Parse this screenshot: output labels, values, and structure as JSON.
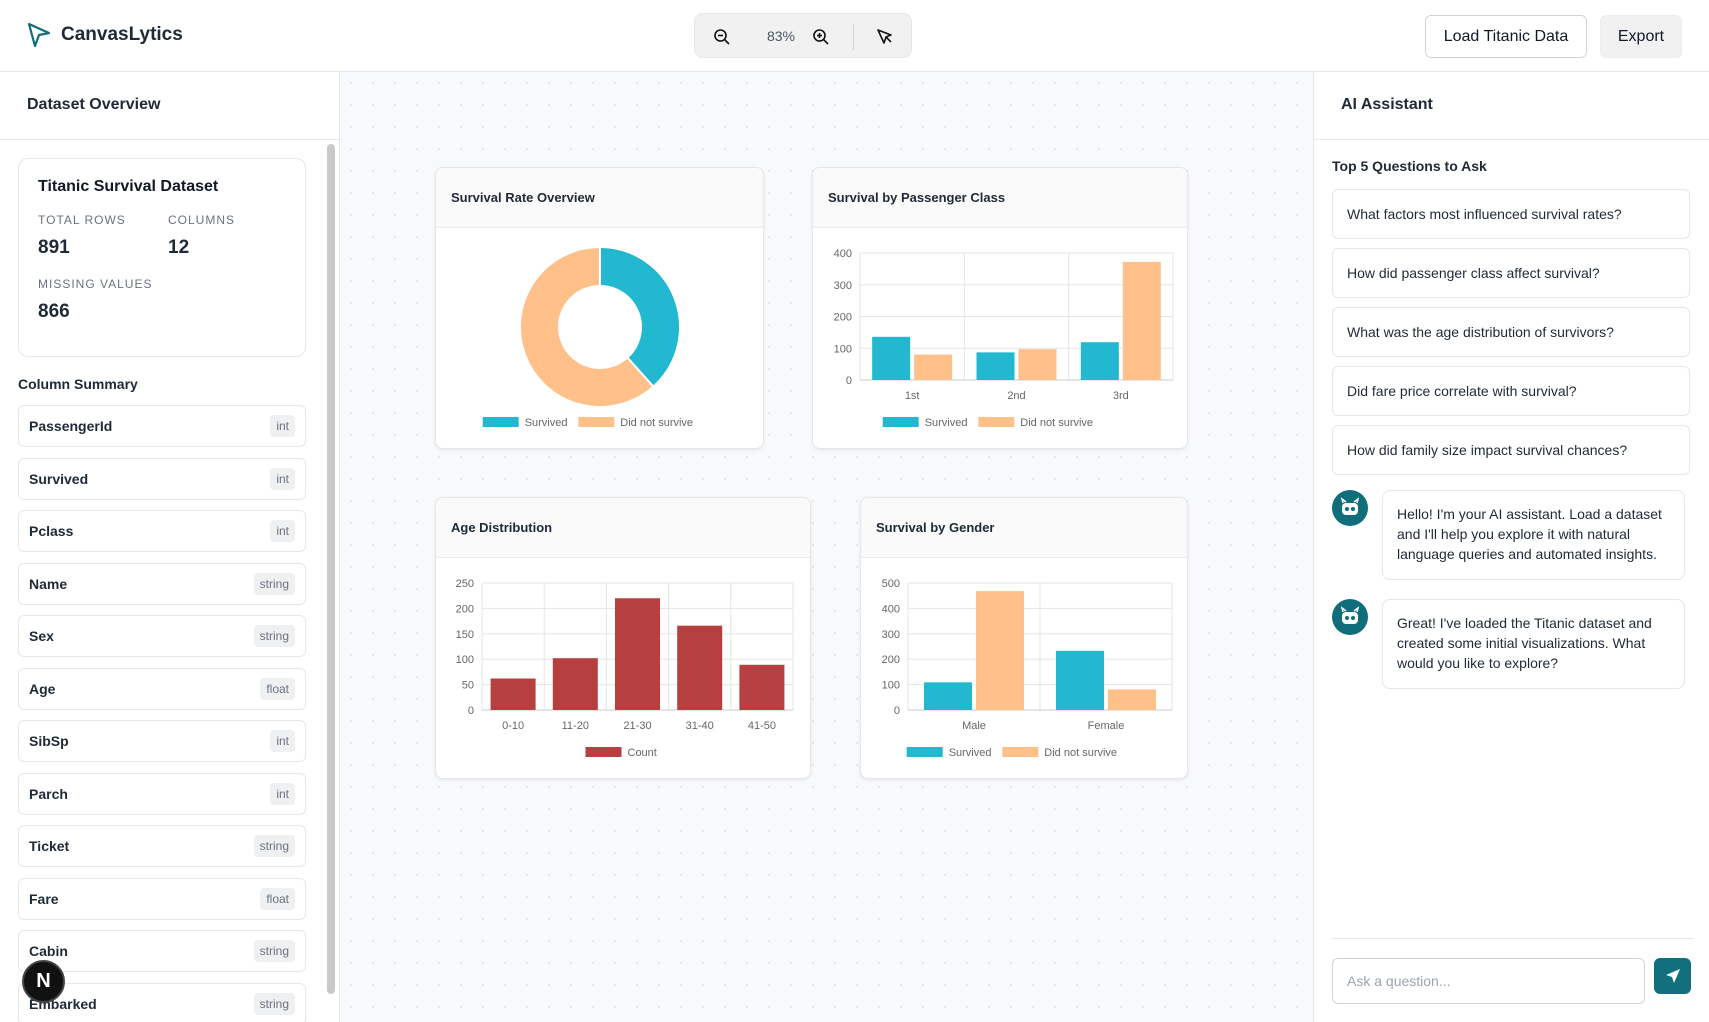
{
  "app": {
    "title": "CanvasLytics"
  },
  "toolbar": {
    "zoom": "83%",
    "load_label": "Load Titanic Data",
    "export_label": "Export",
    "icons": [
      "zoom-out-icon",
      "zoom-in-icon",
      "select-tool-icon"
    ]
  },
  "sidebar": {
    "title": "Dataset Overview",
    "dataset": {
      "name": "Titanic Survival Dataset",
      "rows_label": "TOTAL ROWS",
      "rows": "891",
      "cols_label": "COLUMNS",
      "cols": "12",
      "missing_label": "MISSING VALUES",
      "missing": "866"
    },
    "column_summary_title": "Column Summary",
    "columns": [
      {
        "name": "PassengerId",
        "type": "int"
      },
      {
        "name": "Survived",
        "type": "int"
      },
      {
        "name": "Pclass",
        "type": "int"
      },
      {
        "name": "Name",
        "type": "string"
      },
      {
        "name": "Sex",
        "type": "string"
      },
      {
        "name": "Age",
        "type": "float"
      },
      {
        "name": "SibSp",
        "type": "int"
      },
      {
        "name": "Parch",
        "type": "int"
      },
      {
        "name": "Ticket",
        "type": "string"
      },
      {
        "name": "Fare",
        "type": "float"
      },
      {
        "name": "Cabin",
        "type": "string"
      },
      {
        "name": "Embarked",
        "type": "string"
      }
    ],
    "badge": "N"
  },
  "colors": {
    "survived": "#22b8cf",
    "not_survived": "#ffc08a",
    "count": "#b64040",
    "accent": "#11707c"
  },
  "chart_data": [
    {
      "type": "pie",
      "title": "Survival Rate Overview",
      "categories": [
        "Survived",
        "Did not survive"
      ],
      "values": [
        342,
        549
      ],
      "legend": "bottom"
    },
    {
      "type": "bar",
      "title": "Survival by Passenger Class",
      "categories": [
        "1st",
        "2nd",
        "3rd"
      ],
      "series": [
        {
          "name": "Survived",
          "values": [
            136,
            87,
            119
          ]
        },
        {
          "name": "Did not survive",
          "values": [
            80,
            97,
            372
          ]
        }
      ],
      "ylim": [
        0,
        400
      ],
      "yticks": [
        "0",
        "100",
        "200",
        "300",
        "400"
      ],
      "grid": true,
      "legend": "bottom"
    },
    {
      "type": "bar",
      "title": "Age Distribution",
      "categories": [
        "0-10",
        "11-20",
        "21-30",
        "31-40",
        "41-50"
      ],
      "series": [
        {
          "name": "Count",
          "values": [
            62,
            102,
            220,
            166,
            89
          ]
        }
      ],
      "ylim": [
        0,
        250
      ],
      "yticks": [
        "0",
        "50",
        "100",
        "150",
        "200",
        "250"
      ],
      "grid": true,
      "legend": "bottom"
    },
    {
      "type": "bar",
      "title": "Survival by Gender",
      "categories": [
        "Male",
        "Female"
      ],
      "series": [
        {
          "name": "Survived",
          "values": [
            109,
            233
          ]
        },
        {
          "name": "Did not survive",
          "values": [
            468,
            81
          ]
        }
      ],
      "ylim": [
        0,
        500
      ],
      "yticks": [
        "0",
        "100",
        "200",
        "300",
        "400",
        "500"
      ],
      "grid": true,
      "legend": "bottom"
    }
  ],
  "assistant": {
    "title": "AI Assistant",
    "questions_title": "Top 5 Questions to Ask",
    "questions": [
      "What factors most influenced survival rates?",
      "How did passenger class affect survival?",
      "What was the age distribution of survivors?",
      "Did fare price correlate with survival?",
      "How did family size impact survival chances?"
    ],
    "messages": [
      "Hello! I'm your AI assistant. Load a dataset and I'll help you explore it with natural language queries and automated insights.",
      "Great! I've loaded the Titanic dataset and created some initial visualizations. What would you like to explore?"
    ],
    "input_placeholder": "Ask a question..."
  }
}
